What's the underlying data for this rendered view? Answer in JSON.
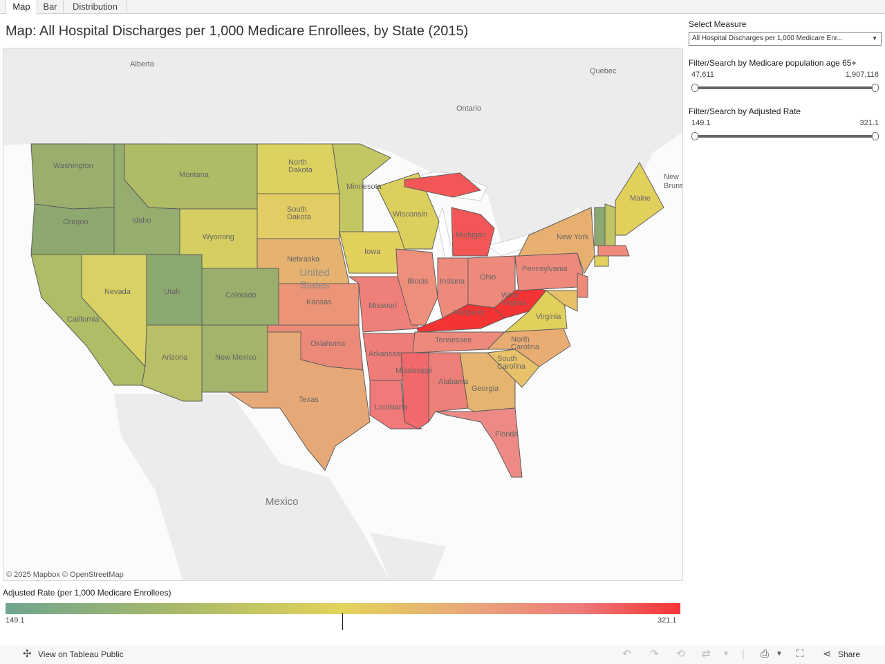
{
  "tabs": [
    {
      "label": "Map"
    },
    {
      "label": "Bar"
    },
    {
      "label": "Distribution"
    }
  ],
  "title": "Map: All Hospital Discharges per 1,000 Medicare Enrollees, by State (2015)",
  "map": {
    "region_labels": {
      "alberta": "Alberta",
      "quebec": "Quebec",
      "ontario": "Ontario",
      "mexico": "Mexico",
      "united_states": "United States",
      "new_brunswick": "New Brunswic"
    },
    "states": [
      {
        "label": "Washington"
      },
      {
        "label": "Oregon"
      },
      {
        "label": "California"
      },
      {
        "label": "Nevada"
      },
      {
        "label": "Idaho"
      },
      {
        "label": "Montana"
      },
      {
        "label": "Wyoming"
      },
      {
        "label": "Utah"
      },
      {
        "label": "Arizona"
      },
      {
        "label": "Colorado"
      },
      {
        "label": "New Mexico"
      },
      {
        "label": "North Dakota"
      },
      {
        "label": "South Dakota"
      },
      {
        "label": "Nebraska"
      },
      {
        "label": "Kansas"
      },
      {
        "label": "Oklahoma"
      },
      {
        "label": "Texas"
      },
      {
        "label": "Minnesota"
      },
      {
        "label": "Iowa"
      },
      {
        "label": "Missouri"
      },
      {
        "label": "Arkansas"
      },
      {
        "label": "Louisiana"
      },
      {
        "label": "Wisconsin"
      },
      {
        "label": "Illinois"
      },
      {
        "label": "Michigan"
      },
      {
        "label": "Indiana"
      },
      {
        "label": "Ohio"
      },
      {
        "label": "Kentucky"
      },
      {
        "label": "Tennessee"
      },
      {
        "label": "Mississippi"
      },
      {
        "label": "Alabama"
      },
      {
        "label": "Georgia"
      },
      {
        "label": "Florida"
      },
      {
        "label": "South Carolina"
      },
      {
        "label": "North Carolina"
      },
      {
        "label": "Virginia"
      },
      {
        "label": "West Virginia"
      },
      {
        "label": "Pennsylvania"
      },
      {
        "label": "New York"
      },
      {
        "label": "Maine"
      }
    ],
    "attribution": "© 2025 Mapbox  © OpenStreetMap"
  },
  "panel": {
    "select_label": "Select Measure",
    "select_value": "All Hospital Discharges per 1,000 Medicare Enr...",
    "filter1": {
      "label": "Filter/Search by Medicare population age 65+",
      "min": "47,611",
      "max": "1,907,116"
    },
    "filter2": {
      "label": "Filter/Search by Adjusted Rate",
      "min": "149.1",
      "max": "321.1"
    }
  },
  "legend": {
    "title": "Adjusted Rate (per 1,000 Medicare Enrollees)",
    "min": "149.1",
    "max": "321.1"
  },
  "footer": {
    "view_label": "View on Tableau Public",
    "share_label": "Share"
  },
  "colors": {
    "low": "#6fa58f",
    "mid": "#e3d35b",
    "high": "#f43434"
  }
}
